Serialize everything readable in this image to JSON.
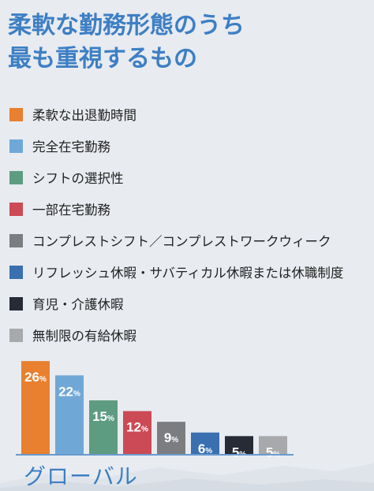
{
  "title": {
    "line1": "柔軟な勤務形態のうち",
    "line2": "最も重視するもの"
  },
  "xlabel": "グローバル",
  "chart_data": {
    "type": "bar",
    "title": "柔軟な勤務形態のうち最も重視するもの",
    "xlabel": "グローバル",
    "ylabel": "",
    "ylim": [
      0,
      30
    ],
    "legend_position": "top",
    "value_suffix": "%",
    "categories": [
      "柔軟な出退勤時間",
      "完全在宅勤務",
      "シフトの選択性",
      "一部在宅勤務",
      "コンプレストシフト／コンプレストワークウィーク",
      "リフレッシュ休暇・サバティカル休暇または休職制度",
      "育児・介護休暇",
      "無制限の有給休暇"
    ],
    "values": [
      26,
      22,
      15,
      12,
      9,
      6,
      5,
      5
    ],
    "colors": [
      "#e8802f",
      "#6fa8d6",
      "#5e9c82",
      "#cc4a55",
      "#7b7d80",
      "#3a6fb0",
      "#262b36",
      "#a8a9ab"
    ]
  }
}
